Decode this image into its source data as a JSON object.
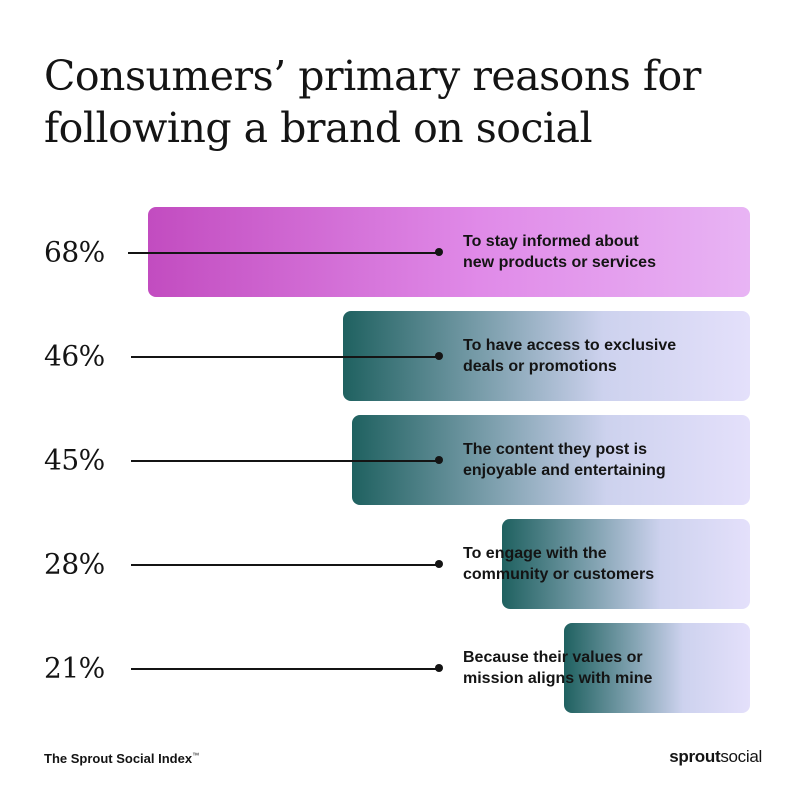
{
  "header": {
    "title_lines": [
      "Consumers’ primary reasons for",
      "following a brand on social"
    ]
  },
  "chart_data": {
    "type": "bar",
    "orientation": "horizontal",
    "title": "Consumers’ primary reasons for following a brand on social",
    "categories": [
      [
        "To stay informed about",
        "new products or services"
      ],
      [
        "To have access to exclusive",
        "deals or promotions"
      ],
      [
        "The content they post is",
        "enjoyable and entertaining"
      ],
      [
        "To engage with the",
        "community or customers"
      ],
      [
        "Because their values or",
        "mission aligns with mine"
      ]
    ],
    "values": [
      68,
      46,
      45,
      28,
      21
    ],
    "value_labels": [
      "68%",
      "46%",
      "45%",
      "28%",
      "21%"
    ],
    "unit": "%",
    "grid": false,
    "legend": "none",
    "colors": {
      "highlight": "#c24cc0",
      "base": "#1f6160",
      "fade": "#e4e0fb"
    }
  },
  "footer": {
    "source": "The Sprout Social Index",
    "source_mark": "™",
    "brand_bold": "sprout",
    "brand_light": "social"
  }
}
